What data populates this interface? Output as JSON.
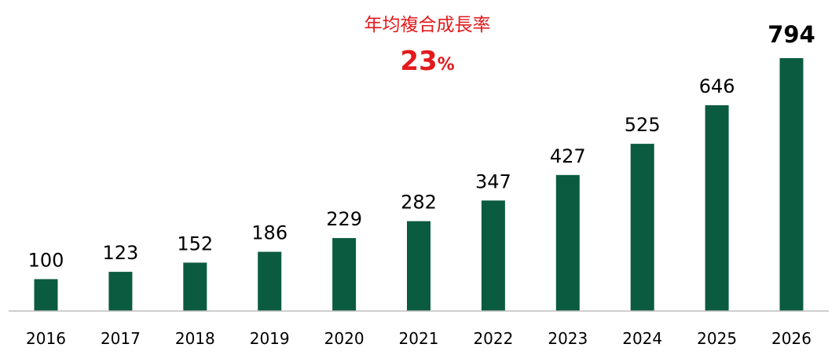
{
  "chart_data": {
    "type": "bar",
    "categories": [
      "2016",
      "2017",
      "2018",
      "2019",
      "2020",
      "2021",
      "2022",
      "2023",
      "2024",
      "2025",
      "2026"
    ],
    "values": [
      100,
      123,
      152,
      186,
      229,
      282,
      347,
      427,
      525,
      646,
      794
    ],
    "title": "",
    "xlabel": "",
    "ylabel": "",
    "ylim": [
      0,
      800
    ],
    "bar_color": "#0b5b40",
    "highlight_last_label": true,
    "grid": false,
    "legend": "none"
  },
  "annotation": {
    "label": "年均複合成長率",
    "value": "23",
    "unit": "%",
    "color": "#e31a1c"
  }
}
